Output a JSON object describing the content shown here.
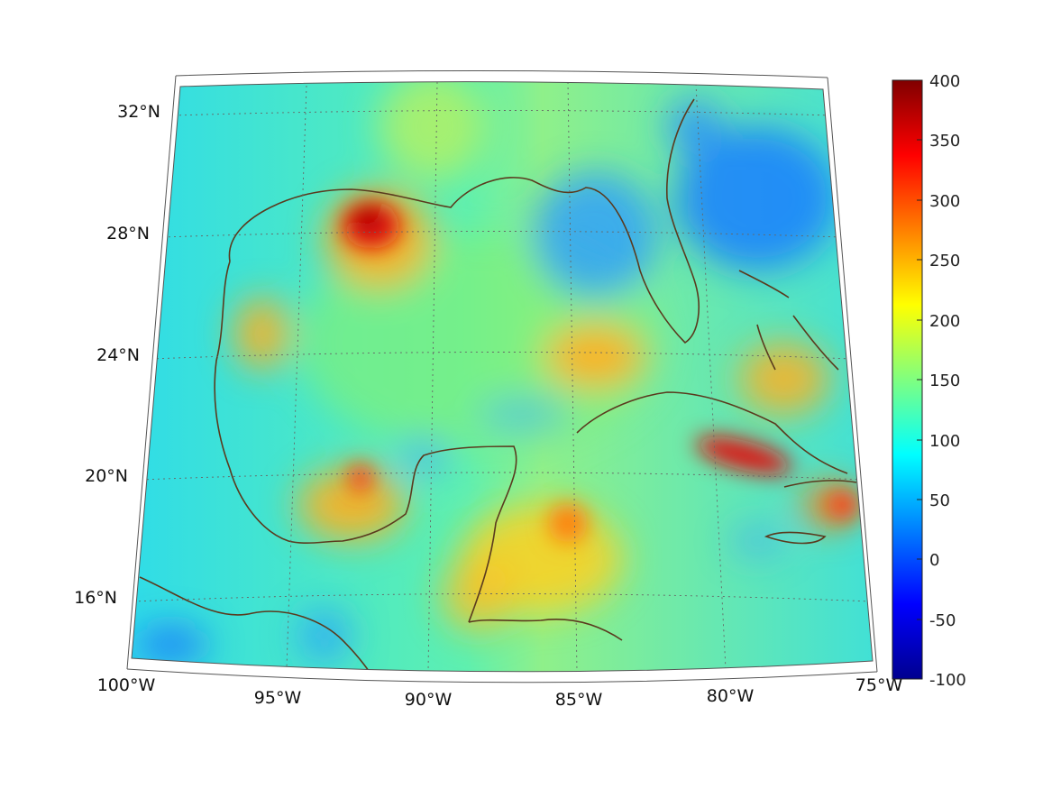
{
  "map": {
    "lat_labels": [
      "32°N",
      "28°N",
      "24°N",
      "20°N",
      "16°N"
    ],
    "lon_labels": [
      "100°W",
      "95°W",
      "90°W",
      "85°W",
      "80°W",
      "75°W"
    ],
    "grid": "dotted",
    "projection": "conic",
    "extent": {
      "lon": [
        -100,
        -75
      ],
      "lat": [
        14,
        33
      ]
    }
  },
  "colorbar": {
    "ticks": [
      "400",
      "350",
      "300",
      "250",
      "200",
      "150",
      "100",
      "50",
      "0",
      "-50",
      "-100"
    ],
    "range": [
      -100,
      400
    ],
    "colormap": "jet",
    "colors": [
      "#00008f",
      "#0000ff",
      "#00ffff",
      "#ffff00",
      "#ff0000",
      "#800000"
    ]
  },
  "colors": {
    "coastline": "#5a3a1e",
    "background_field": "#33e0e0"
  }
}
